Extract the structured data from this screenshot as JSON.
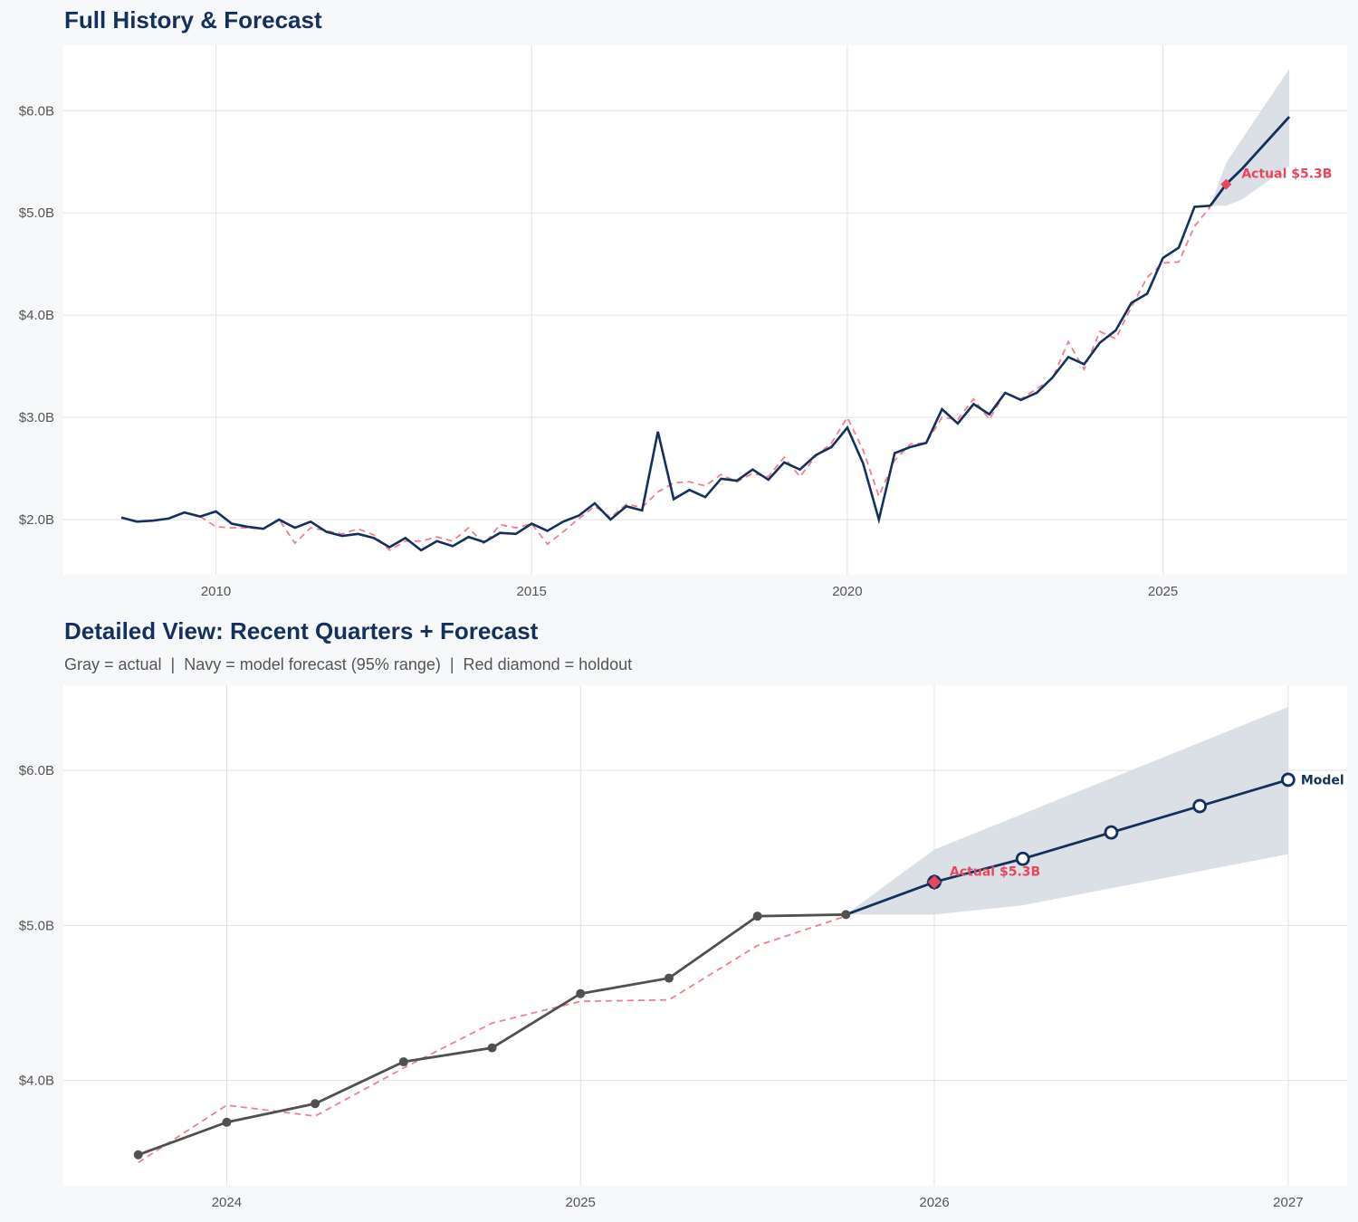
{
  "colors": {
    "background": "#f7f8fa",
    "actual_navy": "#13315c",
    "actual_gray": "#505050",
    "fitted_red": "#f07f8f",
    "holdout_red": "#e8475f",
    "band": "#d5dbe2"
  },
  "chart_data": [
    {
      "type": "line",
      "title": "Full History & Forecast",
      "xlim": [
        "2007-08-01",
        "2027-12-01"
      ],
      "ylim": [
        1.46,
        6.64
      ],
      "grid": true,
      "x_ticks": [
        "2010",
        "2015",
        "2020",
        "2025"
      ],
      "y_ticks": [
        {
          "value": 2,
          "label": "$2.0B"
        },
        {
          "value": 3,
          "label": "$3.0B"
        },
        {
          "value": 4,
          "label": "$4.0B"
        },
        {
          "value": 5,
          "label": "$5.0B"
        },
        {
          "value": 6,
          "label": "$6.0B"
        }
      ],
      "actual": {
        "x": [
          "2008-07-01",
          "2008-10-01",
          "2009-01-01",
          "2009-04-01",
          "2009-07-01",
          "2009-10-01",
          "2010-01-01",
          "2010-04-01",
          "2010-07-01",
          "2010-10-01",
          "2011-01-01",
          "2011-04-01",
          "2011-07-01",
          "2011-10-01",
          "2012-01-01",
          "2012-04-01",
          "2012-07-01",
          "2012-10-01",
          "2013-01-01",
          "2013-04-01",
          "2013-07-01",
          "2013-10-01",
          "2014-01-01",
          "2014-04-01",
          "2014-07-01",
          "2014-10-01",
          "2015-01-01",
          "2015-04-01",
          "2015-07-01",
          "2015-10-01",
          "2016-01-01",
          "2016-04-01",
          "2016-07-01",
          "2016-10-01",
          "2017-01-01",
          "2017-04-01",
          "2017-07-01",
          "2017-10-01",
          "2018-01-01",
          "2018-04-01",
          "2018-07-01",
          "2018-10-01",
          "2019-01-01",
          "2019-04-01",
          "2019-07-01",
          "2019-10-01",
          "2020-01-01",
          "2020-04-01",
          "2020-07-01",
          "2020-10-01",
          "2021-01-01",
          "2021-04-01",
          "2021-07-01",
          "2021-10-01",
          "2022-01-01",
          "2022-04-01",
          "2022-07-01",
          "2022-10-01",
          "2023-01-01",
          "2023-04-01",
          "2023-07-01",
          "2023-10-01",
          "2024-01-01",
          "2024-04-01",
          "2024-07-01",
          "2024-10-01",
          "2025-01-01",
          "2025-04-01",
          "2025-07-01",
          "2025-10-01"
        ],
        "y": [
          2.02,
          1.98,
          1.99,
          2.01,
          2.07,
          2.03,
          2.08,
          1.96,
          1.93,
          1.91,
          2.0,
          1.92,
          1.98,
          1.88,
          1.84,
          1.86,
          1.82,
          1.73,
          1.82,
          1.7,
          1.79,
          1.74,
          1.83,
          1.78,
          1.87,
          1.86,
          1.96,
          1.89,
          1.98,
          2.04,
          2.16,
          2.0,
          2.13,
          2.09,
          2.86,
          2.2,
          2.29,
          2.22,
          2.4,
          2.38,
          2.49,
          2.39,
          2.56,
          2.49,
          2.63,
          2.71,
          2.9,
          2.55,
          2.0,
          2.65,
          2.71,
          2.75,
          3.08,
          2.94,
          3.13,
          3.03,
          3.24,
          3.17,
          3.24,
          3.39,
          3.59,
          3.52,
          3.73,
          3.85,
          4.12,
          4.21,
          4.56,
          4.66,
          5.06,
          5.07
        ]
      },
      "fitted": {
        "x": [
          "2009-10-01",
          "2010-01-01",
          "2010-04-01",
          "2010-07-01",
          "2010-10-01",
          "2011-01-01",
          "2011-04-01",
          "2011-07-01",
          "2011-10-01",
          "2012-01-01",
          "2012-04-01",
          "2012-07-01",
          "2012-10-01",
          "2013-01-01",
          "2013-04-01",
          "2013-07-01",
          "2013-10-01",
          "2014-01-01",
          "2014-04-01",
          "2014-07-01",
          "2014-10-01",
          "2015-01-01",
          "2015-04-01",
          "2015-07-01",
          "2015-10-01",
          "2016-01-01",
          "2016-04-01",
          "2016-07-01",
          "2016-10-01",
          "2017-01-01",
          "2017-04-01",
          "2017-07-01",
          "2017-10-01",
          "2018-01-01",
          "2018-04-01",
          "2018-07-01",
          "2018-10-01",
          "2019-01-01",
          "2019-04-01",
          "2019-07-01",
          "2019-10-01",
          "2020-01-01",
          "2020-04-01",
          "2020-07-01",
          "2020-10-01",
          "2021-01-01",
          "2021-04-01",
          "2021-07-01",
          "2021-10-01",
          "2022-01-01",
          "2022-04-01",
          "2022-07-01",
          "2022-10-01",
          "2023-01-01",
          "2023-04-01",
          "2023-07-01",
          "2023-10-01",
          "2024-01-01",
          "2024-04-01",
          "2024-07-01",
          "2024-10-01",
          "2025-01-01",
          "2025-04-01",
          "2025-07-01",
          "2025-10-01"
        ],
        "y": [
          2.03,
          1.93,
          1.92,
          1.92,
          1.91,
          2.0,
          1.77,
          1.92,
          1.89,
          1.86,
          1.91,
          1.85,
          1.7,
          1.79,
          1.79,
          1.83,
          1.79,
          1.92,
          1.76,
          1.95,
          1.92,
          1.96,
          1.76,
          1.88,
          2.01,
          2.13,
          2.02,
          2.15,
          2.12,
          2.27,
          2.36,
          2.37,
          2.33,
          2.44,
          2.37,
          2.45,
          2.42,
          2.61,
          2.42,
          2.62,
          2.75,
          3.0,
          2.68,
          2.23,
          2.58,
          2.74,
          2.75,
          3.0,
          2.98,
          3.18,
          2.98,
          3.24,
          3.18,
          3.28,
          3.38,
          3.74,
          3.47,
          3.84,
          3.77,
          4.08,
          4.37,
          4.51,
          4.52,
          4.87,
          5.06
        ]
      },
      "forecast": {
        "x": [
          "2025-10-01",
          "2026-01-01",
          "2026-04-01",
          "2026-07-01",
          "2026-10-01",
          "2027-01-01"
        ],
        "y": [
          5.07,
          5.28,
          5.43,
          5.6,
          5.77,
          5.94
        ],
        "upper": [
          5.07,
          5.49,
          5.72,
          5.95,
          6.18,
          6.41
        ],
        "lower": [
          5.07,
          5.07,
          5.13,
          5.24,
          5.35,
          5.46
        ]
      },
      "holdout": {
        "x": "2026-01-01",
        "y": 5.28,
        "label": "Actual $5.3B"
      }
    },
    {
      "type": "line",
      "title": "Detailed View: Recent Quarters + Forecast",
      "subtitle": "Gray = actual  |  Navy = model forecast (95% range)  |  Red diamond = holdout",
      "xlim": [
        "2023-07-15",
        "2027-03-01"
      ],
      "ylim": [
        3.32,
        6.55
      ],
      "grid": true,
      "x_ticks": [
        "2024",
        "2025",
        "2026",
        "2027"
      ],
      "y_ticks": [
        {
          "value": 4,
          "label": "$4.0B"
        },
        {
          "value": 5,
          "label": "$5.0B"
        },
        {
          "value": 6,
          "label": "$6.0B"
        }
      ],
      "actual": {
        "x": [
          "2023-10-01",
          "2024-01-01",
          "2024-04-01",
          "2024-07-01",
          "2024-10-01",
          "2025-01-01",
          "2025-04-01",
          "2025-07-01",
          "2025-10-01"
        ],
        "y": [
          3.52,
          3.73,
          3.85,
          4.12,
          4.21,
          4.56,
          4.66,
          5.06,
          5.07
        ]
      },
      "fitted": {
        "x": [
          "2023-10-01",
          "2024-01-01",
          "2024-04-01",
          "2024-07-01",
          "2024-10-01",
          "2025-01-01",
          "2025-04-01",
          "2025-07-01",
          "2025-10-01"
        ],
        "y": [
          3.47,
          3.84,
          3.77,
          4.08,
          4.37,
          4.51,
          4.52,
          4.87,
          5.06
        ]
      },
      "forecast": {
        "x": [
          "2025-10-01",
          "2026-01-01",
          "2026-04-01",
          "2026-07-01",
          "2026-10-01",
          "2027-01-01"
        ],
        "y": [
          5.07,
          5.28,
          5.43,
          5.6,
          5.77,
          5.94
        ],
        "upper": [
          5.07,
          5.49,
          5.72,
          5.95,
          6.18,
          6.41
        ],
        "lower": [
          5.07,
          5.07,
          5.13,
          5.24,
          5.35,
          5.46
        ],
        "end_label": "Model"
      },
      "holdout": {
        "x": "2026-01-01",
        "y": 5.28,
        "label": "Actual $5.3B"
      }
    }
  ]
}
